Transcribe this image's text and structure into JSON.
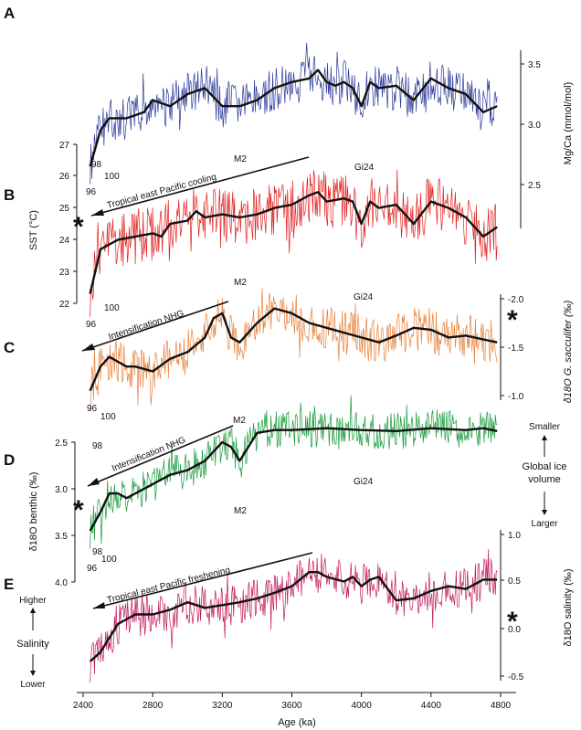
{
  "chart_data": {
    "type": "line",
    "x_axis": {
      "label": "Age (ka)",
      "ticks": [
        2400,
        2800,
        3200,
        3600,
        4000,
        4400,
        4800
      ],
      "range": [
        2350,
        4850
      ]
    },
    "panels": [
      {
        "id": "A",
        "color": "#2b3a9a",
        "right_axis": {
          "label": "Mg/Ca (mmol/mol)",
          "ticks": [
            "3.5",
            "3.0",
            "2.5"
          ]
        },
        "left_axis": {
          "label": "SST (°C)",
          "ticks": [
            "27",
            "26",
            "25",
            "24",
            "23",
            "22"
          ]
        },
        "annotations": [
          "98",
          "100",
          "96",
          "M2",
          "Gi24"
        ],
        "arrow_text": "",
        "series": {
          "name": "",
          "smooth": [
            [
              2440,
              2.65
            ],
            [
              2500,
              2.95
            ],
            [
              2550,
              3.05
            ],
            [
              2650,
              3.05
            ],
            [
              2750,
              3.1
            ],
            [
              2800,
              3.2
            ],
            [
              2900,
              3.15
            ],
            [
              3000,
              3.25
            ],
            [
              3100,
              3.3
            ],
            [
              3200,
              3.15
            ],
            [
              3300,
              3.15
            ],
            [
              3400,
              3.2
            ],
            [
              3500,
              3.3
            ],
            [
              3600,
              3.35
            ],
            [
              3700,
              3.38
            ],
            [
              3750,
              3.45
            ],
            [
              3800,
              3.35
            ],
            [
              3850,
              3.32
            ],
            [
              3900,
              3.35
            ],
            [
              3950,
              3.3
            ],
            [
              4000,
              3.15
            ],
            [
              4050,
              3.35
            ],
            [
              4100,
              3.3
            ],
            [
              4200,
              3.32
            ],
            [
              4300,
              3.2
            ],
            [
              4400,
              3.38
            ],
            [
              4500,
              3.3
            ],
            [
              4600,
              3.25
            ],
            [
              4700,
              3.1
            ],
            [
              4780,
              3.15
            ]
          ]
        }
      },
      {
        "id": "B",
        "color": "#e0201e",
        "arrow_text": "Tropical east Pacific cooling",
        "annotations": [
          "M2",
          "Gi24",
          "100",
          "96"
        ],
        "series": {
          "name": "",
          "smooth": [
            [
              2440,
              22.3
            ],
            [
              2500,
              23.7
            ],
            [
              2600,
              24.0
            ],
            [
              2700,
              24.1
            ],
            [
              2800,
              24.2
            ],
            [
              2850,
              24.1
            ],
            [
              2900,
              24.5
            ],
            [
              3000,
              24.6
            ],
            [
              3050,
              24.9
            ],
            [
              3100,
              24.7
            ],
            [
              3200,
              24.8
            ],
            [
              3300,
              24.7
            ],
            [
              3400,
              24.8
            ],
            [
              3500,
              25.0
            ],
            [
              3600,
              25.1
            ],
            [
              3700,
              25.4
            ],
            [
              3750,
              25.5
            ],
            [
              3800,
              25.2
            ],
            [
              3900,
              25.3
            ],
            [
              3950,
              25.2
            ],
            [
              4000,
              24.5
            ],
            [
              4050,
              25.2
            ],
            [
              4100,
              25.0
            ],
            [
              4200,
              25.1
            ],
            [
              4300,
              24.5
            ],
            [
              4400,
              25.2
            ],
            [
              4500,
              25.0
            ],
            [
              4600,
              24.7
            ],
            [
              4700,
              24.1
            ],
            [
              4780,
              24.4
            ]
          ]
        }
      },
      {
        "id": "C",
        "color": "#e8813a",
        "right_axis": {
          "label": "δ18O G. sacculifer (‰)",
          "ticks": [
            "-2.0",
            "-1.5",
            "-1.0"
          ]
        },
        "arrow_text": "Intensification NHG",
        "annotations": [
          "96",
          "100"
        ],
        "series": {
          "name": "",
          "smooth": [
            [
              2440,
              -1.05
            ],
            [
              2500,
              -1.3
            ],
            [
              2550,
              -1.4
            ],
            [
              2600,
              -1.35
            ],
            [
              2650,
              -1.3
            ],
            [
              2700,
              -1.3
            ],
            [
              2800,
              -1.25
            ],
            [
              2900,
              -1.38
            ],
            [
              3000,
              -1.45
            ],
            [
              3100,
              -1.6
            ],
            [
              3150,
              -1.8
            ],
            [
              3200,
              -1.85
            ],
            [
              3250,
              -1.6
            ],
            [
              3300,
              -1.55
            ],
            [
              3400,
              -1.75
            ],
            [
              3500,
              -1.9
            ],
            [
              3600,
              -1.85
            ],
            [
              3700,
              -1.75
            ],
            [
              3800,
              -1.7
            ],
            [
              3900,
              -1.65
            ],
            [
              4000,
              -1.6
            ],
            [
              4100,
              -1.55
            ],
            [
              4200,
              -1.62
            ],
            [
              4300,
              -1.7
            ],
            [
              4400,
              -1.68
            ],
            [
              4500,
              -1.6
            ],
            [
              4600,
              -1.62
            ],
            [
              4700,
              -1.58
            ],
            [
              4780,
              -1.55
            ]
          ]
        }
      },
      {
        "id": "D",
        "color": "#179a3a",
        "left_axis": {
          "label": "δ18O benthic (‰)",
          "ticks": [
            "2.5",
            "3.0",
            "3.5",
            "4.0"
          ]
        },
        "side_label": {
          "title": "Global ice volume",
          "top": "Smaller",
          "bottom": "Larger"
        },
        "arrow_text": "Intensification NHG",
        "annotations": [
          "M2",
          "Gi24",
          "98",
          "100",
          "96"
        ],
        "series": {
          "name": "",
          "smooth": [
            [
              2440,
              3.45
            ],
            [
              2500,
              3.25
            ],
            [
              2550,
              3.05
            ],
            [
              2600,
              3.05
            ],
            [
              2650,
              3.1
            ],
            [
              2700,
              3.05
            ],
            [
              2800,
              2.95
            ],
            [
              2900,
              2.85
            ],
            [
              3000,
              2.8
            ],
            [
              3100,
              2.7
            ],
            [
              3150,
              2.6
            ],
            [
              3200,
              2.5
            ],
            [
              3250,
              2.55
            ],
            [
              3300,
              2.7
            ],
            [
              3350,
              2.55
            ],
            [
              3400,
              2.4
            ],
            [
              3500,
              2.37
            ],
            [
              3600,
              2.37
            ],
            [
              3800,
              2.35
            ],
            [
              4000,
              2.37
            ],
            [
              4200,
              2.38
            ],
            [
              4400,
              2.35
            ],
            [
              4600,
              2.37
            ],
            [
              4700,
              2.35
            ],
            [
              4780,
              2.38
            ]
          ]
        }
      },
      {
        "id": "E",
        "color": "#c2185b",
        "right_axis": {
          "label": "δ18O salinity (‰)",
          "ticks": [
            "1.0",
            "0.5",
            "0.0",
            "-0.5"
          ]
        },
        "side_label": {
          "title": "Salinity",
          "top": "Higher",
          "bottom": "Lower"
        },
        "arrow_text": "Tropical east Pacific freshening",
        "series": {
          "name": "",
          "smooth": [
            [
              2440,
              -0.35
            ],
            [
              2500,
              -0.25
            ],
            [
              2550,
              -0.1
            ],
            [
              2600,
              0.05
            ],
            [
              2700,
              0.15
            ],
            [
              2800,
              0.15
            ],
            [
              2900,
              0.2
            ],
            [
              3000,
              0.28
            ],
            [
              3100,
              0.22
            ],
            [
              3200,
              0.25
            ],
            [
              3300,
              0.28
            ],
            [
              3400,
              0.32
            ],
            [
              3500,
              0.38
            ],
            [
              3600,
              0.45
            ],
            [
              3700,
              0.6
            ],
            [
              3750,
              0.6
            ],
            [
              3800,
              0.55
            ],
            [
              3900,
              0.5
            ],
            [
              3950,
              0.55
            ],
            [
              4000,
              0.45
            ],
            [
              4050,
              0.52
            ],
            [
              4100,
              0.55
            ],
            [
              4200,
              0.3
            ],
            [
              4300,
              0.32
            ],
            [
              4400,
              0.4
            ],
            [
              4500,
              0.45
            ],
            [
              4600,
              0.42
            ],
            [
              4700,
              0.52
            ],
            [
              4780,
              0.52
            ]
          ]
        }
      }
    ]
  }
}
